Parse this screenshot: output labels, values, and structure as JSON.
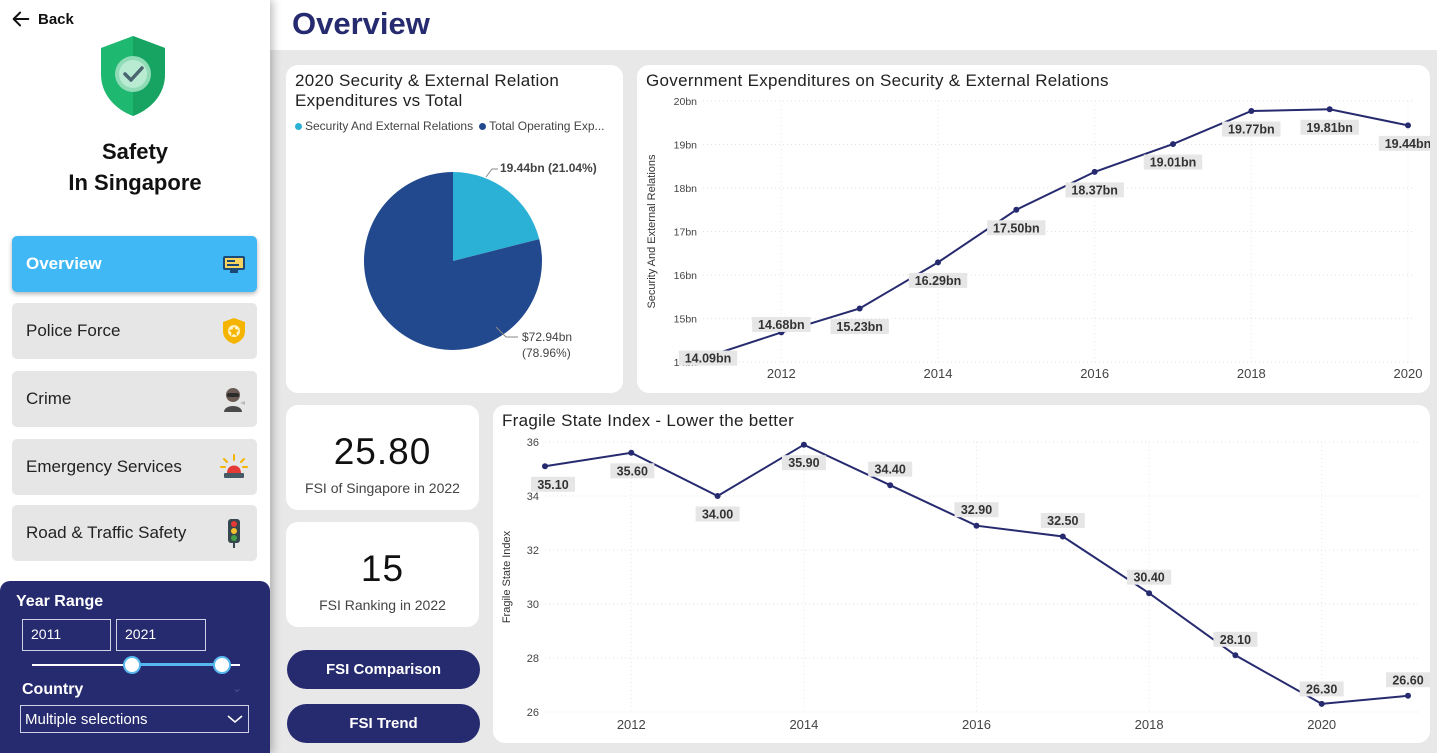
{
  "sidebar": {
    "back_label": "Back",
    "title_line1": "Safety",
    "title_line2": "In Singapore",
    "nav": [
      {
        "label": "Overview",
        "icon": "monitor-icon",
        "active": true
      },
      {
        "label": "Police Force",
        "icon": "police-badge-icon",
        "active": false
      },
      {
        "label": "Crime",
        "icon": "criminal-icon",
        "active": false
      },
      {
        "label": "Emergency Services",
        "icon": "siren-icon",
        "active": false
      },
      {
        "label": "Road & Traffic Safety",
        "icon": "traffic-light-icon",
        "active": false
      }
    ],
    "filters": {
      "year_range_label": "Year Range",
      "year_start": "2011",
      "year_end": "2021",
      "slider_start_fraction": 0.48,
      "slider_end_fraction": 0.91,
      "country_label": "Country",
      "country_value": "Multiple selections"
    }
  },
  "main": {
    "page_title": "Overview",
    "kpis": [
      {
        "value": "25.80",
        "label": "FSI of Singapore in 2022"
      },
      {
        "value": "15",
        "label": "FSI Ranking in 2022"
      }
    ],
    "buttons": [
      {
        "label": "FSI Comparison"
      },
      {
        "label": "FSI Trend"
      }
    ]
  },
  "colors": {
    "navy": "#262a6e",
    "sky": "#3fb8f5",
    "pie_light": "#2bb0d6",
    "pie_dark": "#22498e",
    "line": "#262a6e"
  },
  "chart_data": [
    {
      "type": "pie",
      "title": "2020 Security & External Relation Expenditures vs Total",
      "legend": [
        "Security And External Relations",
        "Total Operating Exp..."
      ],
      "legend_position": "top",
      "slices": [
        {
          "name": "Security And External Relations",
          "value": 19.44,
          "label": "19.44bn (21.04%)",
          "color": "#2bb0d6"
        },
        {
          "name": "Total Operating Expenditure",
          "value": 72.94,
          "label_line1": "$72.94bn",
          "label_line2": "(78.96%)",
          "color": "#22498e"
        }
      ]
    },
    {
      "type": "line",
      "title": "Government Expenditures on Security & External Relations",
      "ylabel": "Security And External Relations",
      "xlabel": "",
      "x": [
        2011,
        2012,
        2013,
        2014,
        2015,
        2016,
        2017,
        2018,
        2019,
        2020
      ],
      "x_ticks": [
        2012,
        2014,
        2016,
        2018,
        2020
      ],
      "y_ticks": [
        "14bn",
        "15bn",
        "16bn",
        "17bn",
        "18bn",
        "19bn",
        "20bn"
      ],
      "ylim": [
        14,
        20
      ],
      "values": [
        14.09,
        14.68,
        15.23,
        16.29,
        17.5,
        18.37,
        19.01,
        19.77,
        19.81,
        19.44
      ],
      "labels": [
        "14.09bn",
        "14.68bn",
        "15.23bn",
        "16.29bn",
        "17.50bn",
        "18.37bn",
        "19.01bn",
        "19.77bn",
        "19.81bn",
        "19.44bn"
      ],
      "grid": true
    },
    {
      "type": "line",
      "title": "Fragile State Index - Lower the better",
      "ylabel": "Fragile State Index",
      "xlabel": "",
      "x": [
        2011,
        2012,
        2013,
        2014,
        2015,
        2016,
        2017,
        2018,
        2019,
        2020,
        2021
      ],
      "x_ticks": [
        2012,
        2014,
        2016,
        2018,
        2020
      ],
      "y_ticks": [
        "26",
        "28",
        "30",
        "32",
        "34",
        "36"
      ],
      "ylim": [
        26,
        36
      ],
      "values": [
        35.1,
        35.6,
        34.0,
        35.9,
        34.4,
        32.9,
        32.5,
        30.4,
        28.1,
        26.3,
        26.6
      ],
      "labels": [
        "35.10",
        "35.60",
        "34.00",
        "35.90",
        "34.40",
        "32.90",
        "32.50",
        "30.40",
        "28.10",
        "26.30",
        "26.60"
      ],
      "grid": true
    }
  ]
}
